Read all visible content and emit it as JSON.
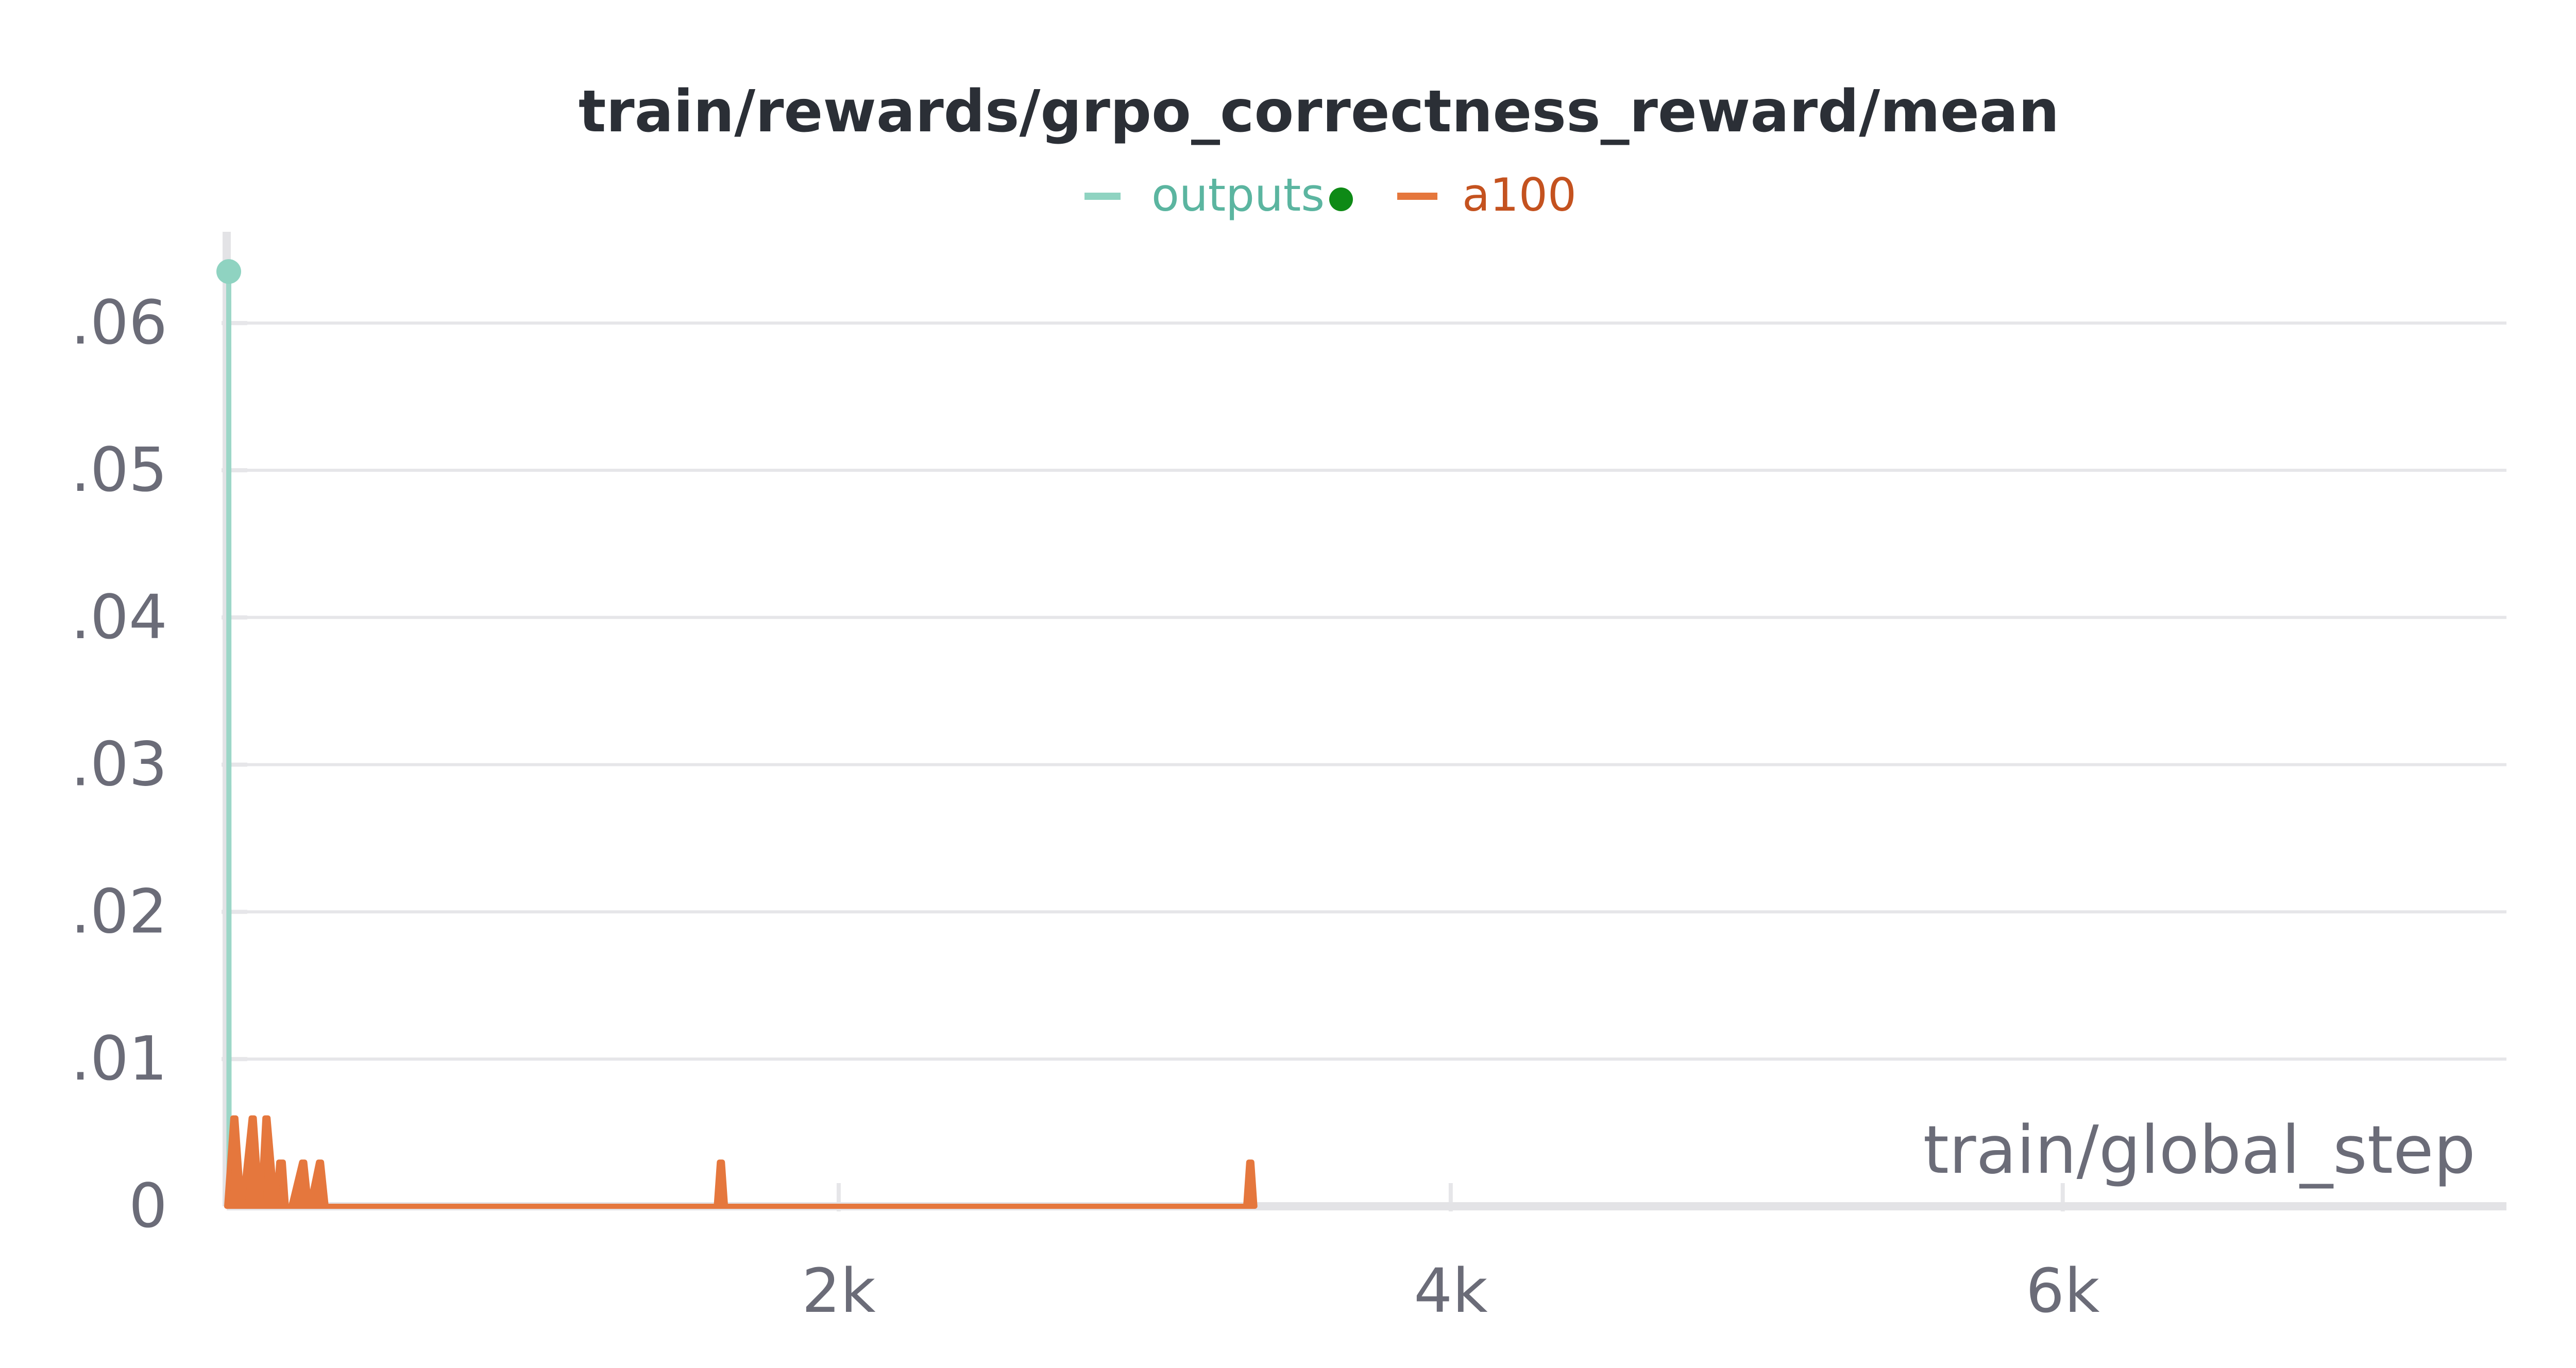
{
  "chart_data": {
    "type": "line",
    "title": "train/rewards/grpo_correctness_reward/mean",
    "xlabel": "train/global_step",
    "ylabel": "",
    "xlim": [
      0,
      7450
    ],
    "ylim": [
      0,
      0.0655
    ],
    "x_ticks": [
      {
        "value": 2000,
        "label": "2k"
      },
      {
        "value": 4000,
        "label": "4k"
      },
      {
        "value": 6000,
        "label": "6k"
      }
    ],
    "y_ticks": [
      {
        "value": 0,
        "label": "0"
      },
      {
        "value": 0.01,
        "label": ".01"
      },
      {
        "value": 0.02,
        "label": ".02"
      },
      {
        "value": 0.03,
        "label": ".03"
      },
      {
        "value": 0.04,
        "label": ".04"
      },
      {
        "value": 0.05,
        "label": ".05"
      },
      {
        "value": 0.06,
        "label": ".06"
      }
    ],
    "grid": true,
    "legend_position": "top-center",
    "series": [
      {
        "name": "outputs",
        "color": "#8fd3c1",
        "marker": "green-dot",
        "x": [
          0,
          1
        ],
        "y": [
          0.0635,
          0
        ]
      },
      {
        "name": "a100",
        "color": "#e5773d",
        "x": [
          0,
          20,
          30,
          50,
          80,
          90,
          110,
          125,
          135,
          160,
          170,
          185,
          195,
          210,
          245,
          255,
          270,
          300,
          310,
          325,
          1600,
          1610,
          1620,
          1630,
          3330,
          3340,
          3350,
          3360
        ],
        "y": [
          0,
          0.006,
          0.006,
          0,
          0.006,
          0.006,
          0,
          0.006,
          0.006,
          0,
          0.003,
          0.003,
          0,
          0,
          0.003,
          0.003,
          0,
          0.003,
          0.003,
          0,
          0,
          0.003,
          0.003,
          0,
          0,
          0.003,
          0.003,
          0
        ]
      }
    ]
  }
}
